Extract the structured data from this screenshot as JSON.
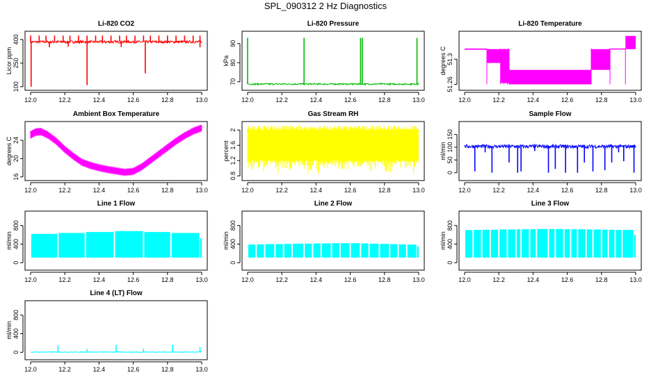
{
  "page_title": "SPL_090312  2 Hz Diagnostics",
  "chart_data": [
    {
      "id": "co2",
      "type": "line",
      "title": "Li-820 CO2",
      "ylabel": "Licor ppm",
      "color": "#ff0000",
      "xlim": [
        12.0,
        13.0
      ],
      "ylim": [
        95,
        435
      ],
      "xticks": [
        12.0,
        12.2,
        12.4,
        12.6,
        12.8,
        13.0
      ],
      "yticks": [
        100,
        250,
        400
      ],
      "style": "baseline_spikes",
      "series": [
        {
          "name": "Li-820 CO2",
          "baseline": 385,
          "noise": 8,
          "spikes_up": [
            12.0,
            12.05,
            12.09,
            12.14,
            12.19,
            12.23,
            12.28,
            12.33,
            12.38,
            12.42,
            12.47,
            12.52,
            12.56,
            12.61,
            12.66,
            12.7,
            12.75,
            12.8,
            12.85,
            12.9,
            12.95,
            12.99
          ],
          "spike_up_value": 425,
          "spikes_down": [
            [
              12.003,
              100
            ],
            [
              12.33,
              110
            ],
            [
              12.67,
              185
            ],
            [
              12.99,
              350
            ],
            [
              12.11,
              350
            ],
            [
              12.53,
              352
            ],
            [
              12.22,
              355
            ]
          ]
        }
      ]
    },
    {
      "id": "pressure",
      "type": "line",
      "title": "Li-820 Pressure",
      "ylabel": "kPa",
      "color": "#00bb00",
      "xlim": [
        12.0,
        13.0
      ],
      "ylim": [
        67,
        95
      ],
      "xticks": [
        12.0,
        12.2,
        12.4,
        12.6,
        12.8,
        13.0
      ],
      "yticks": [
        70,
        80,
        90
      ],
      "style": "baseline_spikes",
      "series": [
        {
          "name": "Li-820 Pressure",
          "baseline": 68.8,
          "noise": 0.4,
          "spikes_up": [
            12.0,
            12.33,
            12.66,
            12.67,
            12.99
          ],
          "spike_up_value": 93,
          "spikes_down": []
        }
      ]
    },
    {
      "id": "licor_temp",
      "type": "line",
      "title": "Li-820 Temperature",
      "ylabel": "degrees C",
      "color": "#ff00ff",
      "xlim": [
        12.0,
        13.0
      ],
      "ylim": [
        51.255,
        51.34
      ],
      "xticks": [
        12.0,
        12.2,
        12.4,
        12.6,
        12.8,
        13.0
      ],
      "yticks": [
        51.26,
        51.3
      ],
      "style": "step_bands",
      "series": [
        {
          "name": "Li-820 Temperature",
          "bands": [
            [
              12.0,
              12.13,
              51.315,
              51.317
            ],
            [
              12.13,
              12.21,
              51.294,
              51.316
            ],
            [
              12.21,
              12.26,
              51.262,
              51.316
            ],
            [
              12.26,
              12.74,
              51.26,
              51.283
            ],
            [
              12.74,
              12.85,
              51.283,
              51.316
            ],
            [
              12.85,
              12.94,
              51.316,
              51.317
            ],
            [
              12.94,
              13.0,
              51.316,
              51.337
            ]
          ]
        }
      ]
    },
    {
      "id": "ambient_temp",
      "type": "line",
      "title": "Ambient Box Temperature",
      "ylabel": "degrees C",
      "color": "#ff00ff",
      "xlim": [
        12.0,
        13.0
      ],
      "ylim": [
        15.8,
        27.5
      ],
      "xticks": [
        12.0,
        12.2,
        12.4,
        12.6,
        12.8,
        13.0
      ],
      "yticks": [
        16,
        20,
        24
      ],
      "style": "band_curve",
      "series": [
        {
          "name": "Ambient Box Temperature",
          "halfwidth": 0.6,
          "x": [
            12.0,
            12.03,
            12.06,
            12.1,
            12.15,
            12.2,
            12.25,
            12.3,
            12.35,
            12.4,
            12.45,
            12.5,
            12.55,
            12.6,
            12.65,
            12.7,
            12.75,
            12.8,
            12.85,
            12.9,
            12.95,
            13.0
          ],
          "y": [
            25.2,
            25.8,
            25.9,
            25.2,
            23.8,
            22.0,
            20.5,
            19.2,
            18.5,
            18.0,
            17.6,
            17.3,
            17.0,
            17.2,
            18.2,
            19.6,
            21.0,
            22.4,
            23.8,
            25.0,
            26.0,
            26.7
          ]
        }
      ]
    },
    {
      "id": "rh",
      "type": "line",
      "title": "Gas Stream RH",
      "ylabel": "percent",
      "color": "#ffff00",
      "xlim": [
        12.0,
        13.0
      ],
      "ylim": [
        0.75,
        2.15
      ],
      "xticks": [
        12.0,
        12.2,
        12.4,
        12.6,
        12.8,
        13.0
      ],
      "yticks": [
        0.8,
        1.2,
        1.6,
        2.0
      ],
      "style": "noise_fill",
      "series": [
        {
          "name": "Gas Stream RH",
          "top": 2.0,
          "bottom": 1.2,
          "min": 0.82,
          "max": 2.12
        }
      ]
    },
    {
      "id": "sample_flow",
      "type": "line",
      "title": "Sample Flow",
      "ylabel": "ml/min",
      "color": "#0000ff",
      "xlim": [
        12.0,
        13.0
      ],
      "ylim": [
        -20,
        190
      ],
      "xticks": [
        12.0,
        12.2,
        12.4,
        12.6,
        12.8,
        13.0
      ],
      "yticks": [
        0,
        50,
        100,
        150
      ],
      "style": "baseline_spikes",
      "series": [
        {
          "name": "Sample Flow",
          "baseline": 103,
          "noise": 7,
          "spikes_up": [],
          "spike_up_value": 120,
          "spikes_down": [
            [
              12.06,
              5
            ],
            [
              12.16,
              0
            ],
            [
              12.26,
              40
            ],
            [
              12.31,
              0
            ],
            [
              12.33,
              5
            ],
            [
              12.49,
              0
            ],
            [
              12.53,
              15
            ],
            [
              12.59,
              0
            ],
            [
              12.66,
              0
            ],
            [
              12.7,
              40
            ],
            [
              12.75,
              5
            ],
            [
              12.82,
              10
            ],
            [
              12.86,
              40
            ],
            [
              12.93,
              45
            ],
            [
              12.99,
              0
            ],
            [
              12.12,
              80
            ],
            [
              12.41,
              85
            ],
            [
              12.9,
              80
            ]
          ]
        }
      ]
    },
    {
      "id": "line1",
      "type": "line",
      "title": "Line 1 Flow",
      "ylabel": "ml/min",
      "color": "#00ffff",
      "xlim": [
        12.0,
        13.0
      ],
      "ylim": [
        -100,
        1050
      ],
      "xticks": [
        12.0,
        12.2,
        12.4,
        12.6,
        12.8,
        13.0
      ],
      "yticks": [
        0,
        400,
        800
      ],
      "style": "segments",
      "series": [
        {
          "name": "Line 1 Flow",
          "low": 110,
          "breaks": [
            12.0,
            12.16,
            12.32,
            12.49,
            12.66,
            12.82,
            12.99
          ],
          "tops": [
            620,
            640,
            660,
            680,
            660,
            640
          ],
          "tail": 530
        }
      ]
    },
    {
      "id": "line2",
      "type": "line",
      "title": "Line 2 Flow",
      "ylabel": "ml/min",
      "color": "#00ffff",
      "xlim": [
        12.0,
        13.0
      ],
      "ylim": [
        -100,
        1050
      ],
      "xticks": [
        12.0,
        12.2,
        12.4,
        12.6,
        12.8,
        13.0
      ],
      "yticks": [
        0,
        400,
        800
      ],
      "style": "segments",
      "series": [
        {
          "name": "Line 2 Flow",
          "low": 110,
          "breaks": [
            12.0,
            12.05,
            12.1,
            12.16,
            12.21,
            12.26,
            12.33,
            12.38,
            12.43,
            12.49,
            12.54,
            12.6,
            12.66,
            12.71,
            12.77,
            12.83,
            12.88,
            12.93,
            12.99
          ],
          "tops": [
            390,
            395,
            400,
            400,
            405,
            410,
            410,
            415,
            415,
            420,
            420,
            420,
            415,
            410,
            405,
            400,
            395,
            390
          ],
          "tail": 350
        }
      ]
    },
    {
      "id": "line3",
      "type": "line",
      "title": "Line 3 Flow",
      "ylabel": "ml/min",
      "color": "#00ffff",
      "xlim": [
        12.0,
        13.0
      ],
      "ylim": [
        -100,
        1050
      ],
      "xticks": [
        12.0,
        12.2,
        12.4,
        12.6,
        12.8,
        13.0
      ],
      "yticks": [
        0,
        400,
        800
      ],
      "style": "segments",
      "series": [
        {
          "name": "Line 3 Flow",
          "low": 110,
          "breaks": [
            12.0,
            12.05,
            12.1,
            12.15,
            12.2,
            12.25,
            12.3,
            12.33,
            12.38,
            12.42,
            12.49,
            12.53,
            12.58,
            12.62,
            12.66,
            12.71,
            12.75,
            12.8,
            12.84,
            12.88,
            12.92,
            12.99
          ],
          "tops": [
            700,
            705,
            710,
            710,
            715,
            715,
            720,
            720,
            720,
            725,
            725,
            725,
            720,
            720,
            720,
            715,
            715,
            710,
            710,
            705,
            705
          ],
          "tail": 600
        }
      ]
    },
    {
      "id": "line4",
      "type": "line",
      "title": "Line 4 (LT) Flow",
      "ylabel": "ml/min",
      "color": "#00ffff",
      "xlim": [
        12.0,
        13.0
      ],
      "ylim": [
        -100,
        1050
      ],
      "xticks": [
        12.0,
        12.2,
        12.4,
        12.6,
        12.8,
        13.0
      ],
      "yticks": [
        0,
        400,
        800
      ],
      "style": "baseline_spikes",
      "series": [
        {
          "name": "Line 4 (LT) Flow",
          "baseline": 5,
          "noise": 8,
          "spikes_up": [
            [
              12.16,
              150
            ],
            [
              12.33,
              70
            ],
            [
              12.5,
              160
            ],
            [
              12.66,
              80
            ],
            [
              12.83,
              160
            ],
            [
              12.99,
              110
            ]
          ],
          "spike_up_value": 150,
          "spikes_down": []
        }
      ]
    }
  ]
}
